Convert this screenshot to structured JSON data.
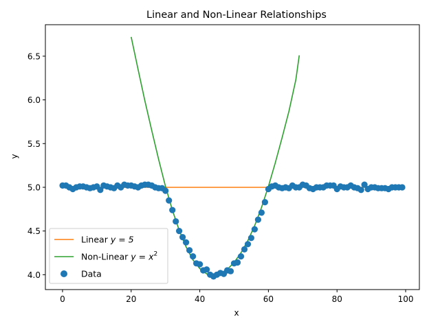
{
  "chart_data": {
    "type": "scatter",
    "title": "Linear and Non-Linear Relationships",
    "xlabel": "x",
    "ylabel": "y",
    "xlim": [
      -5,
      104
    ],
    "ylim": [
      3.83,
      6.86
    ],
    "xticks": [
      0,
      20,
      40,
      60,
      80,
      100
    ],
    "yticks": [
      4.0,
      4.5,
      5.0,
      5.5,
      6.0,
      6.5
    ],
    "xtick_labels": [
      "0",
      "20",
      "40",
      "60",
      "80",
      "100"
    ],
    "ytick_labels": [
      "4.0",
      "4.5",
      "5.0",
      "5.5",
      "6.0",
      "6.5"
    ],
    "grid": false,
    "legend_position": "lower-left",
    "series": [
      {
        "name": "Linear y = 5",
        "legend_main": "Linear ",
        "legend_math": "y = 5",
        "kind": "line",
        "color": "#ff7f0e",
        "x": [
          0,
          99
        ],
        "y": [
          5,
          5
        ]
      },
      {
        "name": "Non-Linear y = x²",
        "legend_main": "Non-Linear ",
        "legend_math": "y = x",
        "legend_sup": "2",
        "kind": "line",
        "color": "#2ca02c",
        "x": [
          20,
          22,
          24,
          26,
          28,
          30,
          32,
          34,
          36,
          38,
          40,
          42,
          44,
          46,
          48,
          50,
          52,
          54,
          56,
          58,
          60,
          62,
          64,
          66,
          68,
          69
        ],
        "y": [
          6.72,
          6.35,
          5.99,
          5.65,
          5.32,
          5.01,
          4.74,
          4.51,
          4.32,
          4.17,
          4.07,
          4.01,
          3.99,
          4.01,
          4.06,
          4.14,
          4.25,
          4.39,
          4.56,
          4.77,
          5.01,
          5.28,
          5.57,
          5.87,
          6.23,
          6.51
        ]
      },
      {
        "name": "Data",
        "kind": "scatter",
        "color": "#1f77b4",
        "x": [
          0,
          1,
          2,
          3,
          4,
          5,
          6,
          7,
          8,
          9,
          10,
          11,
          12,
          13,
          14,
          15,
          16,
          17,
          18,
          19,
          20,
          21,
          22,
          23,
          24,
          25,
          26,
          27,
          28,
          29,
          30,
          31,
          32,
          33,
          34,
          35,
          36,
          37,
          38,
          39,
          40,
          41,
          42,
          43,
          44,
          45,
          46,
          47,
          48,
          49,
          50,
          51,
          52,
          53,
          54,
          55,
          56,
          57,
          58,
          59,
          60,
          61,
          62,
          63,
          64,
          65,
          66,
          67,
          68,
          69,
          70,
          71,
          72,
          73,
          74,
          75,
          76,
          77,
          78,
          79,
          80,
          81,
          82,
          83,
          84,
          85,
          86,
          87,
          88,
          89,
          90,
          91,
          92,
          93,
          94,
          95,
          96,
          97,
          98,
          99
        ],
        "y": [
          5.02,
          5.02,
          5.0,
          4.98,
          5.0,
          5.01,
          5.01,
          5.0,
          4.99,
          5.0,
          5.01,
          4.97,
          5.02,
          5.01,
          5.0,
          4.99,
          5.02,
          5.0,
          5.03,
          5.02,
          5.02,
          5.01,
          5.0,
          5.02,
          5.03,
          5.03,
          5.02,
          5.0,
          4.99,
          4.99,
          4.96,
          4.85,
          4.74,
          4.61,
          4.5,
          4.43,
          4.37,
          4.28,
          4.21,
          4.13,
          4.12,
          4.05,
          4.06,
          4.0,
          3.98,
          4.0,
          4.02,
          4.01,
          4.05,
          4.04,
          4.13,
          4.14,
          4.21,
          4.29,
          4.35,
          4.42,
          4.52,
          4.63,
          4.71,
          4.83,
          4.98,
          5.01,
          5.02,
          5.0,
          4.99,
          5.0,
          4.99,
          5.02,
          5.0,
          5.0,
          5.03,
          5.02,
          4.99,
          4.98,
          5.0,
          5.0,
          5.0,
          5.02,
          5.02,
          5.02,
          4.98,
          5.01,
          5.0,
          5.0,
          5.02,
          5.0,
          4.99,
          4.97,
          5.03,
          4.98,
          5.0,
          5.0,
          4.99,
          4.99,
          4.99,
          4.98,
          5.0,
          5.0,
          5.0,
          5.0
        ]
      }
    ]
  }
}
